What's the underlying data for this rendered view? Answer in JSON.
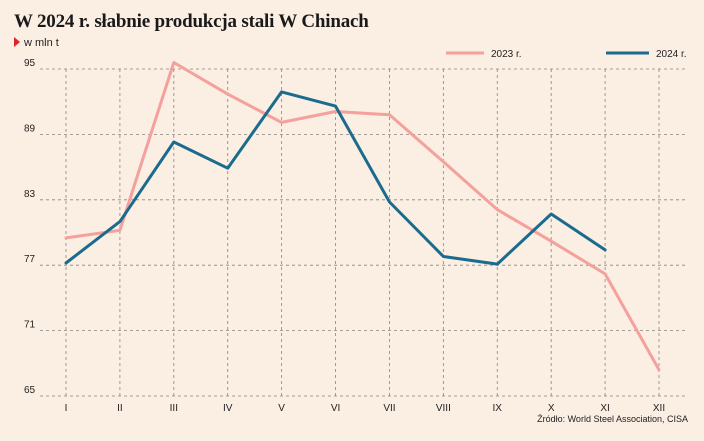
{
  "chart_data": {
    "type": "line",
    "title": "W 2024 r. słabnie produkcja stali W Chinach",
    "unit_label": "w mln t",
    "source": "Źródło: World Steel Association, CISA",
    "categories": [
      "I",
      "II",
      "III",
      "IV",
      "V",
      "VI",
      "VII",
      "VIII",
      "IX",
      "X",
      "XI",
      "XII"
    ],
    "ylim": [
      65,
      95
    ],
    "yticks": [
      65,
      71,
      77,
      83,
      89,
      95
    ],
    "grid": true,
    "legend_position": "top-right",
    "series": [
      {
        "name": "2023 r.",
        "color": "#f4a09c",
        "values": [
          79.5,
          80.2,
          95.6,
          92.7,
          90.1,
          91.1,
          90.8,
          86.5,
          82.1,
          79.2,
          76.2,
          67.4
        ]
      },
      {
        "name": "2024 r.",
        "color": "#1b6b8e",
        "values": [
          77.2,
          81.0,
          88.3,
          85.9,
          92.9,
          91.6,
          82.8,
          77.8,
          77.1,
          81.7,
          78.4,
          null
        ]
      }
    ]
  }
}
